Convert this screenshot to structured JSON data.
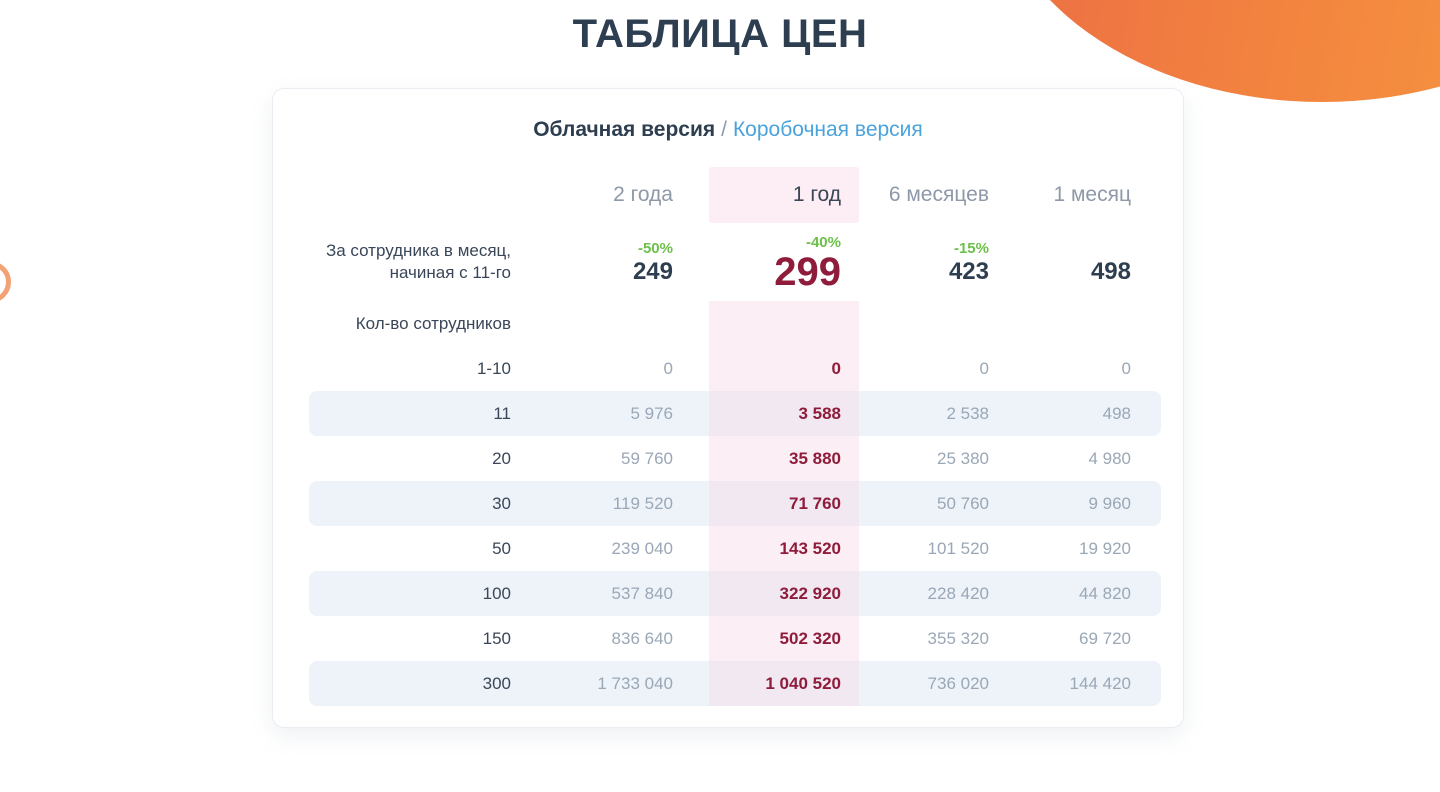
{
  "page_title": "ТАБЛИЦА ЦЕН",
  "tabs": {
    "cloud": "Облачная версия",
    "separator": "/",
    "box": "Коробочная версия"
  },
  "table": {
    "period_headers": [
      "2 года",
      "1 год",
      "6 месяцев",
      "1 месяц"
    ],
    "highlighted_period": "1 год",
    "per_employee": {
      "label_line1": "За сотрудника в месяц,",
      "label_line2": "начиная с 11-го",
      "discounts": [
        "-50%",
        "-40%",
        "-15%",
        ""
      ],
      "prices": [
        "249",
        "299",
        "423",
        "498"
      ]
    },
    "employees_label": "Кол-во сотрудников",
    "rows": [
      {
        "count": "1-10",
        "values": [
          "0",
          "0",
          "0",
          "0"
        ],
        "striped": false
      },
      {
        "count": "11",
        "values": [
          "5 976",
          "3 588",
          "2 538",
          "498"
        ],
        "striped": true
      },
      {
        "count": "20",
        "values": [
          "59 760",
          "35 880",
          "25 380",
          "4 980"
        ],
        "striped": false
      },
      {
        "count": "30",
        "values": [
          "119 520",
          "71 760",
          "50 760",
          "9 960"
        ],
        "striped": true
      },
      {
        "count": "50",
        "values": [
          "239 040",
          "143 520",
          "101 520",
          "19 920"
        ],
        "striped": false
      },
      {
        "count": "100",
        "values": [
          "537 840",
          "322 920",
          "228 420",
          "44 820"
        ],
        "striped": true
      },
      {
        "count": "150",
        "values": [
          "836 640",
          "502 320",
          "355 320",
          "69 720"
        ],
        "striped": false
      },
      {
        "count": "300",
        "values": [
          "1 733 040",
          "1 040 520",
          "736 020",
          "144 420"
        ],
        "striped": true
      }
    ]
  },
  "colors": {
    "title_navy": "#2D3E50",
    "label_dark": "#3A4659",
    "muted_gray": "#9AA7B6",
    "link_blue": "#4BA3DC",
    "price_red": "#8E1C3A",
    "discount_green": "#6CC04A",
    "stripe_blue": "#EDF3F9",
    "highlight_pink": "#FCEEF4",
    "accent_orange_start": "#EB6A46",
    "accent_orange_end": "#F89C3F"
  }
}
